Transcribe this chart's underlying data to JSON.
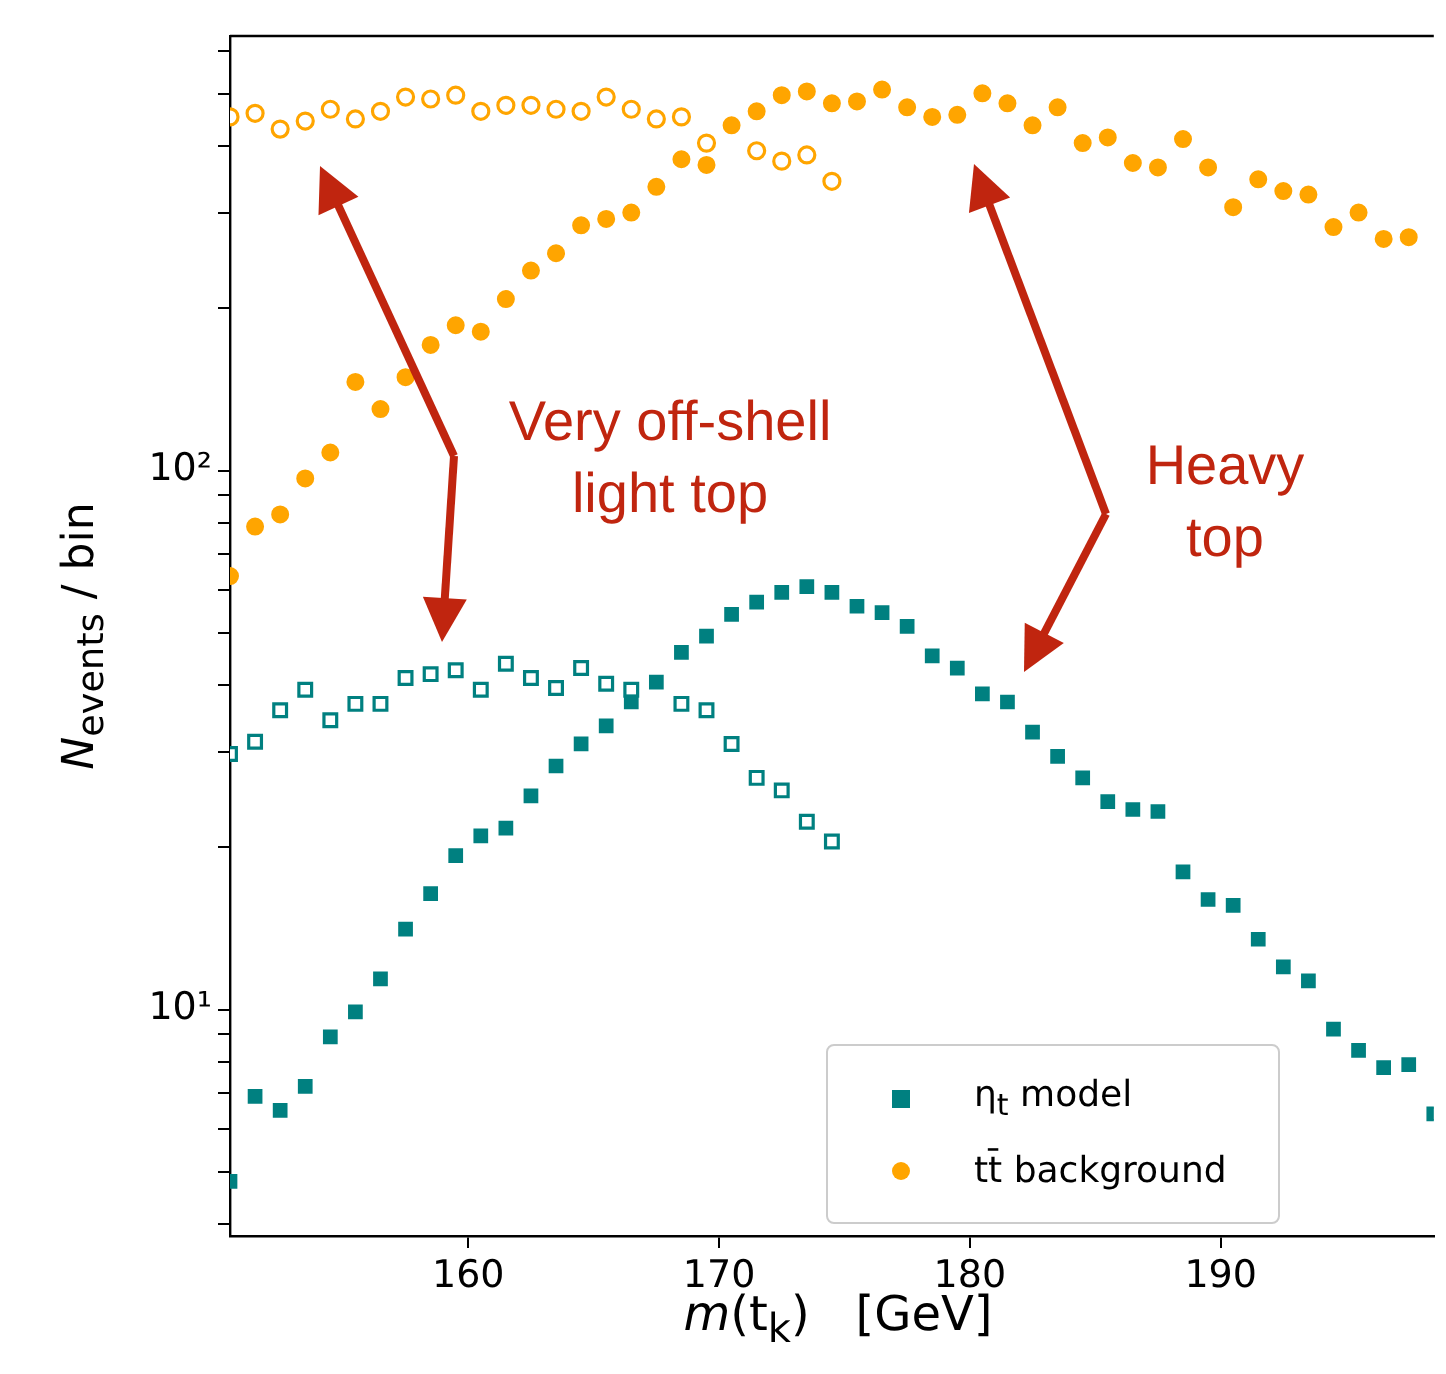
{
  "chart_data": {
    "type": "scatter",
    "xlabel": "m(t$_{k}$)   [GeV]",
    "ylabel": "N$_{events}$ / bin",
    "log": "y",
    "grid": false,
    "legend": "bottom right",
    "annotations": [
      "Very off-shell light top",
      "Heavy top"
    ],
    "xlim": [
      150.5,
      198.5
    ],
    "xticks": [
      160,
      170,
      180,
      190
    ],
    "ylim": [
      3.8,
      640
    ],
    "yticks": [
      {
        "value": 4,
        "label": null
      },
      {
        "value": 5,
        "label": null
      },
      {
        "value": 6,
        "label": null
      },
      {
        "value": 7,
        "label": null
      },
      {
        "value": 8,
        "label": null
      },
      {
        "value": 9,
        "label": null
      },
      {
        "value": 10,
        "label": "10¹"
      },
      {
        "value": 20,
        "label": null
      },
      {
        "value": 30,
        "label": null
      },
      {
        "value": 40,
        "label": null
      },
      {
        "value": 50,
        "label": null
      },
      {
        "value": 60,
        "label": null
      },
      {
        "value": 70,
        "label": null
      },
      {
        "value": 80,
        "label": null
      },
      {
        "value": 90,
        "label": null
      },
      {
        "value": 100,
        "label": "10²"
      },
      {
        "value": 200,
        "label": null
      },
      {
        "value": 300,
        "label": null
      },
      {
        "value": 400,
        "label": null
      },
      {
        "value": 500,
        "label": null
      },
      {
        "value": 600,
        "label": null
      }
    ],
    "x": [
      150.5,
      151.5,
      152.5,
      153.5,
      154.5,
      155.5,
      156.5,
      157.5,
      158.5,
      159.5,
      160.5,
      161.5,
      162.5,
      163.5,
      164.5,
      165.5,
      166.5,
      167.5,
      168.5,
      169.5,
      170.5,
      171.5,
      172.5,
      173.5,
      174.5,
      175.5,
      176.5,
      177.5,
      178.5,
      179.5,
      180.5,
      181.5,
      182.5,
      183.5,
      184.5,
      185.5,
      186.5,
      187.5,
      188.5,
      189.5,
      190.5,
      191.5,
      192.5,
      193.5,
      194.5,
      195.5,
      196.5,
      197.5,
      198.5
    ],
    "series": [
      {
        "name": "η$_{t}$ model",
        "color": "#008080",
        "marker": "square",
        "values": [
          4.8,
          6.9,
          6.5,
          7.2,
          8.9,
          9.9,
          11.4,
          14.1,
          16.4,
          19.3,
          21,
          21.7,
          24.9,
          28.3,
          31.1,
          33.6,
          37.2,
          40.5,
          46,
          49.3,
          54.1,
          57,
          59.4,
          60.9,
          59.4,
          56,
          54.5,
          51.4,
          45.3,
          43,
          38.5,
          37.2,
          32.7,
          29.5,
          26.9,
          24.3,
          23.5,
          23.3,
          18,
          16,
          15.6,
          13.5,
          12,
          11.3,
          9.2,
          8.4,
          7.8,
          7.9,
          6.4
        ]
      },
      {
        "color": "#008080",
        "marker": "square",
        "values": [
          29.8,
          31.4,
          35.9,
          39.2,
          34.4,
          36.9,
          36.9,
          41.2,
          41.9,
          42.6,
          39.2,
          43.8,
          41.2,
          39.5,
          43,
          40.2,
          39.2,
          null,
          36.9,
          35.9,
          31.1,
          26.9,
          25.5,
          22.3,
          20.5,
          null,
          null,
          null,
          null,
          null,
          null,
          null,
          null,
          null,
          null,
          null,
          null,
          null,
          null,
          null,
          null,
          null,
          null,
          null,
          null,
          null,
          null,
          null,
          null
        ]
      },
      {
        "name": "tt̄ background",
        "color": "#ffa500",
        "marker": "circle",
        "values": [
          63.7,
          78.7,
          82.9,
          96.7,
          108,
          146,
          130,
          149,
          171,
          186,
          181,
          208,
          235,
          253,
          285,
          293,
          301,
          336,
          378,
          369,
          437,
          464,
          497,
          505,
          480,
          484,
          509,
          472,
          453,
          457,
          501,
          480,
          437,
          472,
          405,
          415,
          372,
          365,
          412,
          365,
          308,
          347,
          330,
          325,
          283,
          301,
          269,
          271,
          null
        ]
      },
      {
        "color": "#ffa500",
        "marker": "circle",
        "values": [
          453,
          460,
          430,
          445,
          468,
          449,
          464,
          493,
          489,
          497,
          464,
          476,
          476,
          468,
          464,
          493,
          468,
          449,
          453,
          405,
          null,
          392,
          375,
          385,
          344,
          null,
          null,
          null,
          null,
          null,
          null,
          null,
          null,
          null,
          null,
          null,
          null,
          null,
          null,
          null,
          null,
          null,
          null,
          null,
          null,
          null,
          null,
          null,
          null
        ]
      }
    ]
  }
}
